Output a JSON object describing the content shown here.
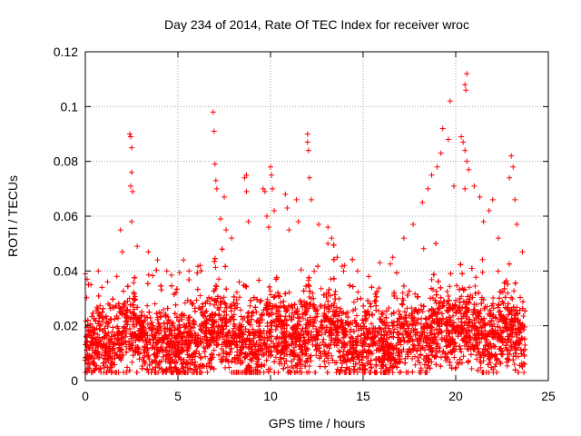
{
  "chart_data": {
    "type": "scatter",
    "title": "Day 234 of 2014, Rate Of TEC Index for receiver wroc",
    "xlabel": "GPS time / hours",
    "ylabel": "ROTI / TECUs",
    "xlim": [
      0,
      25
    ],
    "ylim": [
      0,
      0.12
    ],
    "x_ticks": [
      0,
      5,
      10,
      15,
      20,
      25
    ],
    "y_ticks": [
      0,
      0.02,
      0.04,
      0.06,
      0.08,
      0.1,
      0.12
    ],
    "x_tick_labels": [
      "0",
      "5",
      "10",
      "15",
      "20",
      "25"
    ],
    "y_tick_labels": [
      "0",
      "0.02",
      "0.04",
      "0.06",
      "0.08",
      "0.1",
      "0.12"
    ],
    "grid": true,
    "marker": "+",
    "color": "#ff0000",
    "series": [
      {
        "name": "ROTI",
        "note": "dense band of ~1e4 samples 0-23.7 h mostly 0.005-0.035; representative peaks listed",
        "points": [
          [
            0.0,
            0.039
          ],
          [
            0.1,
            0.037
          ],
          [
            0.3,
            0.035
          ],
          [
            0.7,
            0.04
          ],
          [
            0.9,
            0.034
          ],
          [
            1.2,
            0.036
          ],
          [
            1.7,
            0.038
          ],
          [
            1.9,
            0.055
          ],
          [
            2.0,
            0.047
          ],
          [
            2.4,
            0.09
          ],
          [
            2.45,
            0.089
          ],
          [
            2.5,
            0.085
          ],
          [
            2.5,
            0.076
          ],
          [
            2.45,
            0.071
          ],
          [
            2.55,
            0.069
          ],
          [
            2.5,
            0.058
          ],
          [
            2.8,
            0.049
          ],
          [
            3.4,
            0.047
          ],
          [
            3.9,
            0.044
          ],
          [
            4.4,
            0.04
          ],
          [
            5.3,
            0.044
          ],
          [
            5.6,
            0.04
          ],
          [
            6.2,
            0.042
          ],
          [
            6.9,
            0.098
          ],
          [
            6.95,
            0.091
          ],
          [
            7.0,
            0.079
          ],
          [
            7.05,
            0.073
          ],
          [
            7.1,
            0.07
          ],
          [
            7.5,
            0.067
          ],
          [
            7.3,
            0.059
          ],
          [
            7.6,
            0.055
          ],
          [
            7.9,
            0.052
          ],
          [
            8.6,
            0.074
          ],
          [
            8.7,
            0.075
          ],
          [
            8.7,
            0.069
          ],
          [
            8.8,
            0.058
          ],
          [
            9.6,
            0.07
          ],
          [
            9.7,
            0.069
          ],
          [
            9.8,
            0.06
          ],
          [
            9.9,
            0.056
          ],
          [
            10.0,
            0.078
          ],
          [
            10.05,
            0.075
          ],
          [
            10.1,
            0.07
          ],
          [
            10.2,
            0.062
          ],
          [
            10.8,
            0.068
          ],
          [
            10.9,
            0.063
          ],
          [
            11.0,
            0.055
          ],
          [
            11.4,
            0.066
          ],
          [
            11.5,
            0.058
          ],
          [
            12.0,
            0.09
          ],
          [
            12.0,
            0.087
          ],
          [
            12.05,
            0.084
          ],
          [
            12.1,
            0.074
          ],
          [
            12.2,
            0.066
          ],
          [
            12.6,
            0.057
          ],
          [
            13.1,
            0.056
          ],
          [
            13.3,
            0.052
          ],
          [
            13.6,
            0.045
          ],
          [
            14.0,
            0.042
          ],
          [
            14.7,
            0.04
          ],
          [
            15.3,
            0.038
          ],
          [
            15.9,
            0.043
          ],
          [
            16.6,
            0.045
          ],
          [
            17.2,
            0.052
          ],
          [
            17.7,
            0.057
          ],
          [
            18.2,
            0.065
          ],
          [
            18.5,
            0.07
          ],
          [
            18.7,
            0.075
          ],
          [
            19.0,
            0.078
          ],
          [
            19.2,
            0.083
          ],
          [
            19.3,
            0.092
          ],
          [
            19.6,
            0.088
          ],
          [
            19.7,
            0.102
          ],
          [
            19.9,
            0.071
          ],
          [
            20.3,
            0.089
          ],
          [
            20.4,
            0.087
          ],
          [
            20.5,
            0.084
          ],
          [
            20.6,
            0.08
          ],
          [
            20.5,
            0.108
          ],
          [
            20.6,
            0.112
          ],
          [
            20.55,
            0.106
          ],
          [
            20.7,
            0.077
          ],
          [
            20.5,
            0.07
          ],
          [
            21.0,
            0.071
          ],
          [
            21.3,
            0.067
          ],
          [
            21.5,
            0.058
          ],
          [
            21.8,
            0.062
          ],
          [
            22.0,
            0.066
          ],
          [
            22.3,
            0.052
          ],
          [
            22.9,
            0.074
          ],
          [
            23.0,
            0.082
          ],
          [
            23.1,
            0.078
          ],
          [
            23.2,
            0.066
          ],
          [
            23.3,
            0.057
          ],
          [
            23.6,
            0.047
          ]
        ]
      }
    ]
  }
}
